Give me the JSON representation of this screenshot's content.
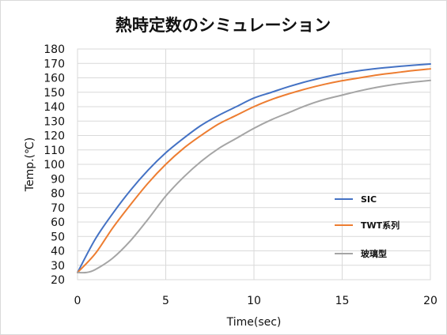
{
  "chart_data": {
    "type": "line",
    "title": "熱時定数のシミュレーション",
    "xlabel": "Time(sec)",
    "ylabel": "Temp.(℃)",
    "xlim": [
      0,
      20
    ],
    "ylim": [
      20,
      180
    ],
    "x_ticks": [
      0,
      5,
      10,
      15,
      20
    ],
    "y_ticks": [
      20,
      30,
      40,
      50,
      60,
      70,
      80,
      90,
      100,
      110,
      120,
      130,
      140,
      150,
      160,
      170,
      180
    ],
    "grid": true,
    "legend_position": "right",
    "series": [
      {
        "name": "SIC",
        "color": "#4472c4",
        "x": [
          0,
          1,
          2,
          3,
          4,
          5,
          6,
          7,
          8,
          9,
          10,
          11,
          12,
          13,
          14,
          15,
          16,
          17,
          18,
          19,
          20
        ],
        "y": [
          25,
          48,
          66,
          82,
          96,
          108,
          118,
          127,
          134,
          140,
          146,
          150,
          154,
          157.5,
          160.5,
          163,
          165,
          166.5,
          167.7,
          168.7,
          169.6
        ]
      },
      {
        "name": "TWT系列",
        "color": "#ed7d31",
        "x": [
          0,
          1,
          2,
          3,
          4,
          5,
          6,
          7,
          8,
          9,
          10,
          11,
          12,
          13,
          14,
          15,
          16,
          17,
          18,
          19,
          20
        ],
        "y": [
          25,
          38,
          56,
          72,
          87,
          100,
          111,
          120,
          128,
          134,
          140,
          145,
          149,
          152.5,
          155.5,
          158,
          160,
          162,
          163.5,
          165,
          166.2
        ]
      },
      {
        "name": "玻璃型",
        "color": "#a5a5a5",
        "x": [
          0,
          0.5,
          1,
          2,
          3,
          4,
          5,
          6,
          7,
          8,
          9,
          10,
          11,
          12,
          13,
          14,
          15,
          16,
          17,
          18,
          19,
          20
        ],
        "y": [
          25,
          25,
          27,
          35,
          47,
          62,
          78,
          91,
          102,
          111,
          118,
          125,
          131,
          136,
          141,
          145,
          148,
          151,
          153.5,
          155.5,
          157,
          158.2
        ]
      }
    ]
  }
}
